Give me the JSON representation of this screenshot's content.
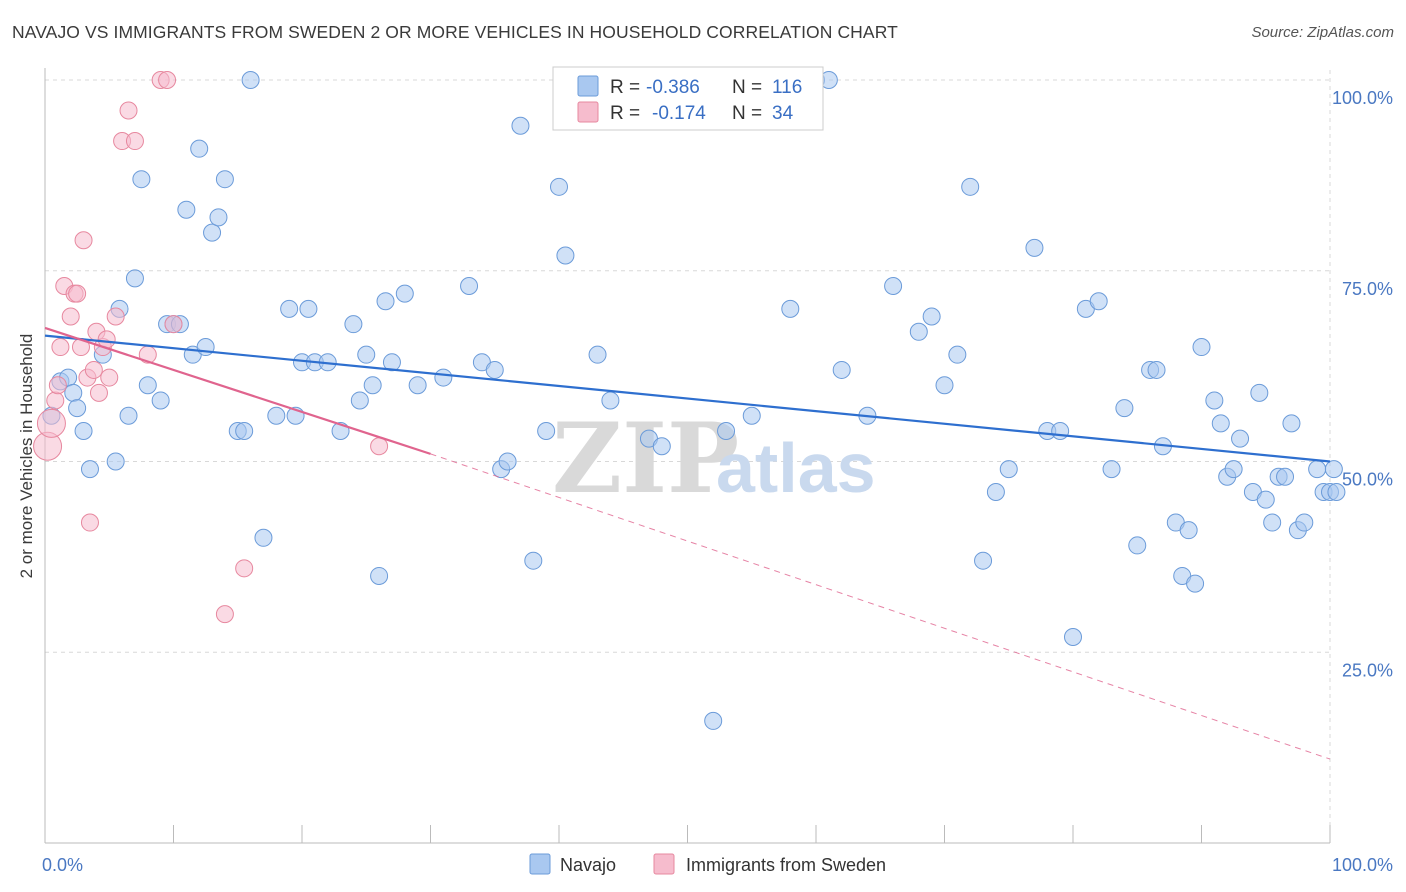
{
  "title": "NAVAJO VS IMMIGRANTS FROM SWEDEN 2 OR MORE VEHICLES IN HOUSEHOLD CORRELATION CHART",
  "source": "Source: ZipAtlas.com",
  "watermark": {
    "zip": "ZIP",
    "atlas": "atlas"
  },
  "colors": {
    "navajo_fill": "#a9c8f0",
    "navajo_stroke": "#6b9bd9",
    "navajo_line": "#2e6fcf",
    "sweden_fill": "#f6bccd",
    "sweden_stroke": "#e7889f",
    "sweden_line": "#e0648e",
    "grid": "#d8d8d8",
    "axis_text": "#4a78c2"
  },
  "legend": {
    "navajo": {
      "r_label": "R = ",
      "r_value": "-0.386",
      "n_label": "N = ",
      "n_value": "116"
    },
    "sweden": {
      "r_label": "R = ",
      "r_value": "-0.174",
      "n_label": "N = ",
      "n_value": "34"
    }
  },
  "chart_data": {
    "type": "scatter",
    "xlabel": "",
    "ylabel": "2 or more Vehicles in Household",
    "xlim": [
      0,
      100
    ],
    "ylim": [
      0,
      100
    ],
    "x_tick_labels": [
      "0.0%",
      "100.0%"
    ],
    "y_ticks": [
      25,
      50,
      75,
      100
    ],
    "y_tick_labels": [
      "25.0%",
      "50.0%",
      "75.0%",
      "100.0%"
    ],
    "grid": true,
    "legend_position": "bottom-center",
    "series": [
      {
        "name": "Navajo",
        "trend": [
          [
            0,
            66.5
          ],
          [
            100,
            50.0
          ]
        ],
        "points": [
          [
            0.5,
            56
          ],
          [
            1.2,
            60.5
          ],
          [
            1.8,
            61
          ],
          [
            2.2,
            59
          ],
          [
            2.5,
            57
          ],
          [
            3.0,
            54
          ],
          [
            3.5,
            49
          ],
          [
            4.5,
            64
          ],
          [
            5.5,
            50
          ],
          [
            5.8,
            70
          ],
          [
            6.5,
            56
          ],
          [
            7.0,
            74
          ],
          [
            7.5,
            87
          ],
          [
            8.0,
            60
          ],
          [
            9.0,
            58
          ],
          [
            9.5,
            68
          ],
          [
            10,
            68
          ],
          [
            10.5,
            68
          ],
          [
            11,
            83
          ],
          [
            11.5,
            64
          ],
          [
            12,
            91
          ],
          [
            12.5,
            65
          ],
          [
            13,
            80
          ],
          [
            13.5,
            82
          ],
          [
            14,
            87
          ],
          [
            15,
            54
          ],
          [
            15.5,
            54
          ],
          [
            16,
            100
          ],
          [
            17,
            40
          ],
          [
            18,
            56
          ],
          [
            19,
            70
          ],
          [
            19.5,
            56
          ],
          [
            20,
            63
          ],
          [
            20.5,
            70
          ],
          [
            21,
            63
          ],
          [
            22,
            63
          ],
          [
            23,
            54
          ],
          [
            24,
            68
          ],
          [
            24.5,
            58
          ],
          [
            25,
            64
          ],
          [
            25.5,
            60
          ],
          [
            26,
            35
          ],
          [
            26.5,
            71
          ],
          [
            27,
            63
          ],
          [
            28,
            72
          ],
          [
            29,
            60
          ],
          [
            31,
            61
          ],
          [
            33,
            73
          ],
          [
            34,
            63
          ],
          [
            35,
            62
          ],
          [
            35.5,
            49
          ],
          [
            36,
            50
          ],
          [
            37,
            94
          ],
          [
            38,
            37
          ],
          [
            39,
            54
          ],
          [
            40,
            86
          ],
          [
            40.5,
            77
          ],
          [
            43,
            64
          ],
          [
            44,
            58
          ],
          [
            47,
            53
          ],
          [
            48,
            52
          ],
          [
            52,
            16
          ],
          [
            53,
            54
          ],
          [
            55,
            56
          ],
          [
            58,
            70
          ],
          [
            60,
            100
          ],
          [
            61,
            100
          ],
          [
            62,
            62
          ],
          [
            64,
            56
          ],
          [
            66,
            73
          ],
          [
            68,
            67
          ],
          [
            69,
            69
          ],
          [
            70,
            60
          ],
          [
            71,
            64
          ],
          [
            72,
            86
          ],
          [
            73,
            37
          ],
          [
            74,
            46
          ],
          [
            75,
            49
          ],
          [
            77,
            78
          ],
          [
            78,
            54
          ],
          [
            79,
            54
          ],
          [
            80,
            27
          ],
          [
            81,
            70
          ],
          [
            82,
            71
          ],
          [
            83,
            49
          ],
          [
            84,
            57
          ],
          [
            85,
            39
          ],
          [
            86,
            62
          ],
          [
            86.5,
            62
          ],
          [
            87,
            52
          ],
          [
            88,
            42
          ],
          [
            88.5,
            35
          ],
          [
            89,
            41
          ],
          [
            89.5,
            34
          ],
          [
            90,
            65
          ],
          [
            91,
            58
          ],
          [
            91.5,
            55
          ],
          [
            92,
            48
          ],
          [
            92.5,
            49
          ],
          [
            93,
            53
          ],
          [
            94,
            46
          ],
          [
            94.5,
            59
          ],
          [
            95,
            45
          ],
          [
            95.5,
            42
          ],
          [
            96,
            48
          ],
          [
            96.5,
            48
          ],
          [
            97,
            55
          ],
          [
            97.5,
            41
          ],
          [
            98,
            42
          ],
          [
            99,
            49
          ],
          [
            99.5,
            46
          ],
          [
            100,
            46
          ],
          [
            100.3,
            49
          ],
          [
            100.5,
            46
          ]
        ]
      },
      {
        "name": "Immigrants from Sweden",
        "trend_solid": [
          [
            0,
            67.5
          ],
          [
            30,
            51.0
          ]
        ],
        "trend_dashed": [
          [
            30,
            51.0
          ],
          [
            100,
            11.0
          ]
        ],
        "points": [
          [
            0.2,
            52
          ],
          [
            0.5,
            55
          ],
          [
            0.8,
            58
          ],
          [
            1.0,
            60
          ],
          [
            1.2,
            65
          ],
          [
            1.5,
            73
          ],
          [
            2.0,
            69
          ],
          [
            2.3,
            72
          ],
          [
            2.5,
            72
          ],
          [
            2.8,
            65
          ],
          [
            3.0,
            79
          ],
          [
            3.3,
            61
          ],
          [
            3.5,
            42
          ],
          [
            3.8,
            62
          ],
          [
            4.0,
            67
          ],
          [
            4.2,
            59
          ],
          [
            4.5,
            65
          ],
          [
            4.8,
            66
          ],
          [
            5.0,
            61
          ],
          [
            5.5,
            69
          ],
          [
            6.0,
            92
          ],
          [
            6.5,
            96
          ],
          [
            7.0,
            92
          ],
          [
            8.0,
            64
          ],
          [
            9.0,
            100
          ],
          [
            9.5,
            100
          ],
          [
            10.0,
            68
          ],
          [
            14.0,
            30
          ],
          [
            15.5,
            36
          ],
          [
            26.0,
            52
          ]
        ]
      }
    ]
  }
}
